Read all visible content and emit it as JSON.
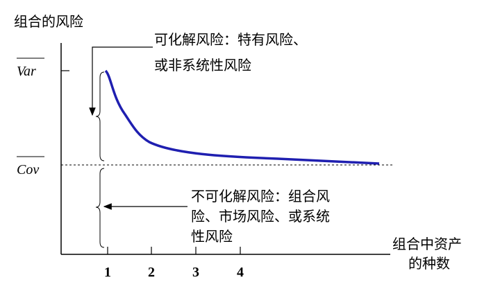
{
  "y_axis_title": "组合的风险",
  "x_axis_title": [
    "组合中资产",
    "的种数"
  ],
  "var_label": "Var",
  "cov_label": "Cov",
  "x_tick_labels": [
    "1",
    "2",
    "3",
    "4"
  ],
  "diversifiable_risk": [
    "可化解风险：特有风险、",
    "或非系统性风险"
  ],
  "systematic_risk": [
    "不可化解风险：组合风",
    "险、市场风险、或系统",
    "性风险"
  ]
}
